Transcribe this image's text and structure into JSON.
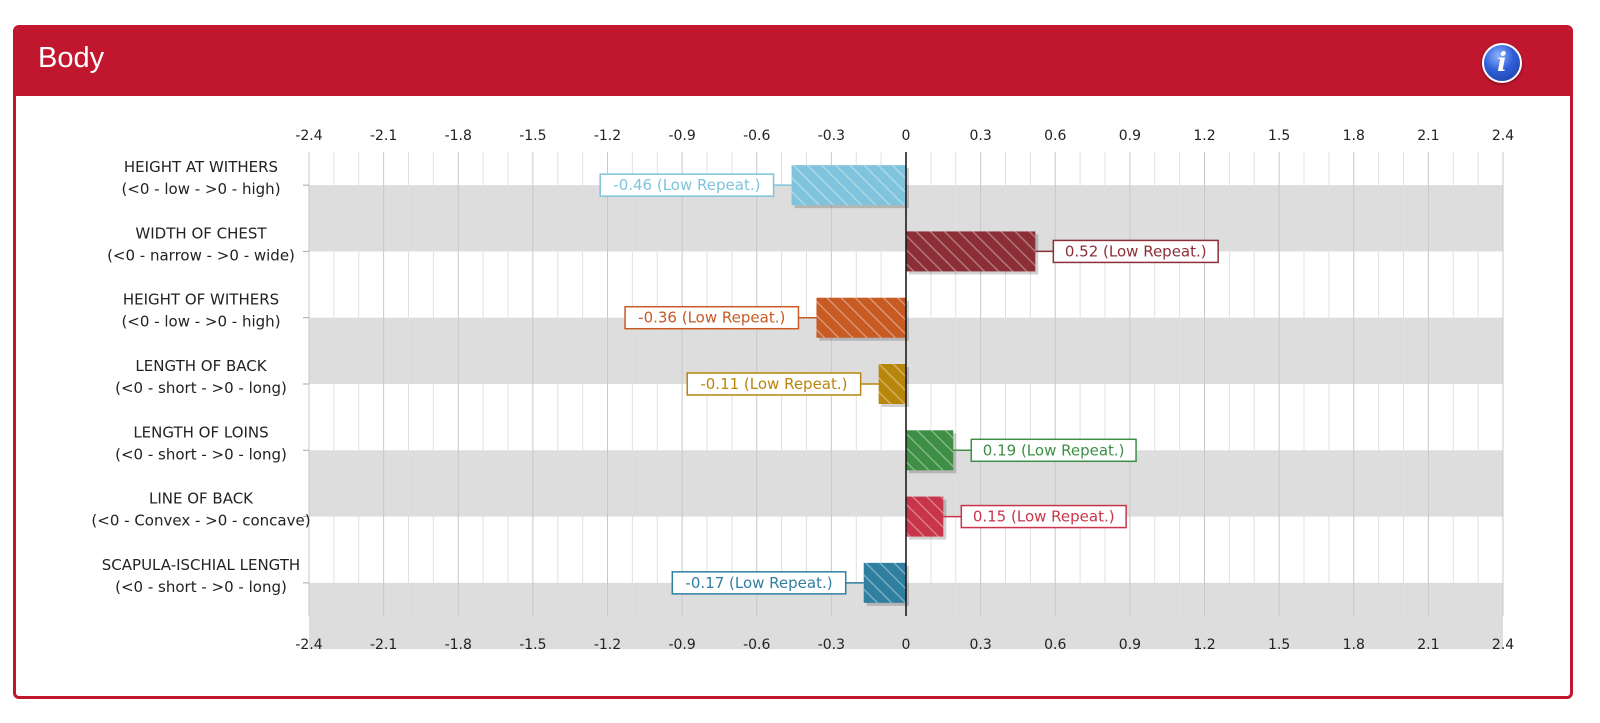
{
  "panel": {
    "title": "Body",
    "info_icon": "info-icon",
    "accent_color": "#c0172f"
  },
  "chart_data": {
    "type": "bar",
    "orientation": "horizontal",
    "xlim": [
      -2.4,
      2.4
    ],
    "xticks": [
      "-2.4",
      "-2.1",
      "-1.8",
      "-1.5",
      "-1.2",
      "-0.9",
      "-0.6",
      "-0.3",
      "0",
      "0.3",
      "0.6",
      "0.9",
      "1.2",
      "1.5",
      "1.8",
      "2.1",
      "2.4"
    ],
    "grid": true,
    "categories": [
      {
        "name": "HEIGHT AT WITHERS",
        "scale": "(<0 - low - >0 - high)"
      },
      {
        "name": "WIDTH OF CHEST",
        "scale": "(<0 - narrow - >0 - wide)"
      },
      {
        "name": "HEIGHT OF WITHERS",
        "scale": "(<0 - low - >0 - high)"
      },
      {
        "name": "LENGTH OF BACK",
        "scale": "(<0 - short - >0 - long)"
      },
      {
        "name": "LENGTH OF LOINS",
        "scale": "(<0 - short - >0 - long)"
      },
      {
        "name": "LINE OF BACK",
        "scale": "(<0 - Convex - >0 - concave)"
      },
      {
        "name": "SCAPULA-ISCHIAL LENGTH",
        "scale": "(<0 - short - >0 - long)"
      }
    ],
    "values": [
      -0.46,
      0.52,
      -0.36,
      -0.11,
      0.19,
      0.15,
      -0.17
    ],
    "labels": [
      "-0.46 (Low Repeat.)",
      "0.52 (Low Repeat.)",
      "-0.36 (Low Repeat.)",
      "-0.11 (Low Repeat.)",
      "0.19 (Low Repeat.)",
      "0.15 (Low Repeat.)",
      "-0.17 (Low Repeat.)"
    ],
    "colors": [
      "#7fc4dc",
      "#8b2e36",
      "#c85a24",
      "#b8860b",
      "#3e8f45",
      "#c8354a",
      "#2f7fa0"
    ]
  }
}
